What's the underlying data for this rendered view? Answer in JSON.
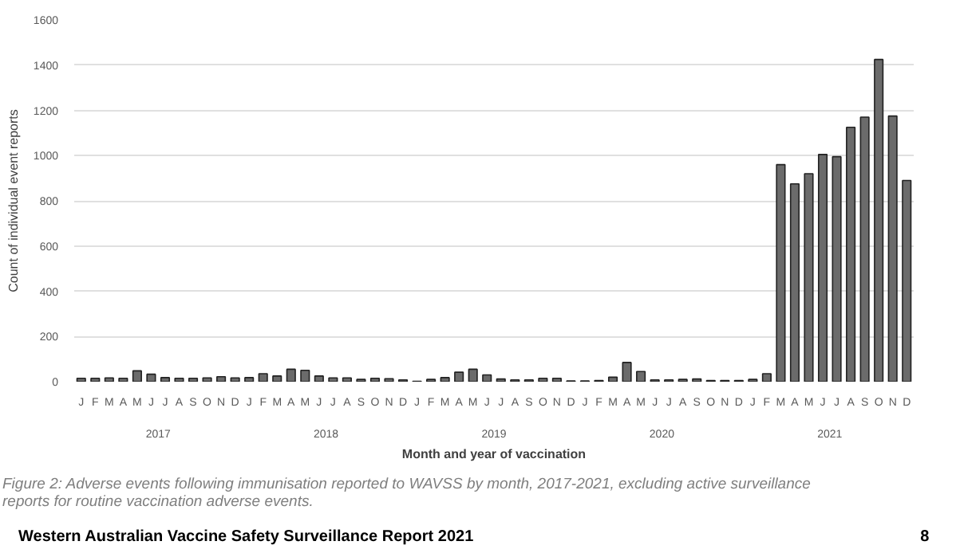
{
  "chart_data": {
    "type": "bar",
    "ylabel": "Count of individual event reports",
    "xlabel": "Month and year of vaccination",
    "categories": [
      "J",
      "F",
      "M",
      "A",
      "M",
      "J",
      "J",
      "A",
      "S",
      "O",
      "N",
      "D",
      "J",
      "F",
      "M",
      "A",
      "M",
      "J",
      "J",
      "A",
      "S",
      "O",
      "N",
      "D",
      "J",
      "F",
      "M",
      "A",
      "M",
      "J",
      "J",
      "A",
      "S",
      "O",
      "N",
      "D",
      "J",
      "F",
      "M",
      "A",
      "M",
      "J",
      "J",
      "A",
      "S",
      "O",
      "N",
      "D",
      "J",
      "F",
      "M",
      "A",
      "M",
      "J",
      "J",
      "A",
      "S",
      "O",
      "N",
      "D"
    ],
    "values": [
      15,
      15,
      17,
      15,
      48,
      33,
      18,
      15,
      15,
      17,
      22,
      17,
      18,
      35,
      25,
      55,
      50,
      25,
      17,
      17,
      10,
      15,
      13,
      8,
      2,
      10,
      18,
      42,
      55,
      30,
      12,
      8,
      8,
      15,
      15,
      3,
      3,
      5,
      20,
      85,
      45,
      8,
      8,
      10,
      12,
      5,
      5,
      5,
      10,
      35,
      960,
      875,
      920,
      1005,
      995,
      1125,
      1170,
      1425,
      1175,
      890
    ],
    "color": "#6b6b6b",
    "ylim": [
      0,
      1600
    ],
    "yticks": [
      0,
      200,
      400,
      600,
      800,
      1000,
      1200,
      1400,
      1600
    ],
    "grid": "y",
    "annotations": [
      "2017",
      "2018",
      "2019",
      "2020",
      "2021",
      "Figure 2: Adverse events following immunisation reported to WAVSS by month, 2017-2021, excluding active surveillance reports for routine vaccination adverse events.",
      "Western Australian Vaccine Safety Surveillance Report 2021",
      "8"
    ]
  }
}
